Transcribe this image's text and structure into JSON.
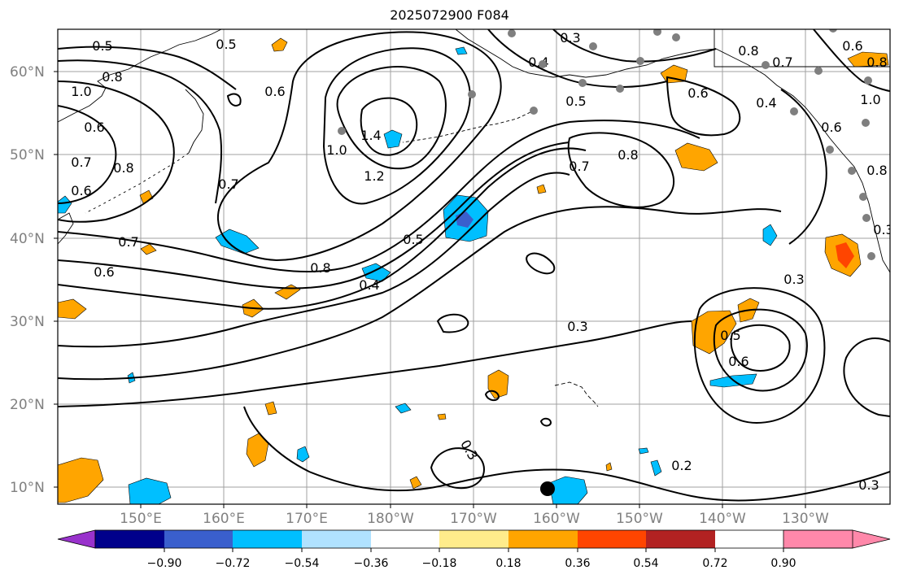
{
  "title": "2025072900 F084",
  "lat_labels": [
    "60°N",
    "50°N",
    "40°N",
    "30°N",
    "20°N",
    "10°N"
  ],
  "lon_labels": [
    "150°E",
    "160°E",
    "170°E",
    "180°W",
    "170°W",
    "160°W",
    "150°W",
    "140°W",
    "130°W"
  ],
  "colorbar": {
    "labels": [
      "−0.90",
      "−0.72",
      "−0.54",
      "−0.36",
      "−0.18",
      "0.18",
      "0.36",
      "0.54",
      "0.72",
      "0.90"
    ],
    "colors": [
      "#9932cc",
      "#00008b",
      "#3a5fcd",
      "#00bfff",
      "#b0e2ff",
      "#ffffff",
      "#ffec8b",
      "#ffa500",
      "#ff4500",
      "#b22222",
      "#ff88aa"
    ]
  },
  "contour_labels": [
    "0.5",
    "0.5",
    "0.8",
    "1.0",
    "0.6",
    "0.6",
    "0.7",
    "0.8",
    "0.7",
    "0.6",
    "0.7",
    "0.6",
    "1.4",
    "1.0",
    "1.2",
    "0.8",
    "0.5",
    "0.4",
    "0.3",
    "0.4",
    "0.5",
    "0.8",
    "0.7",
    "0.8",
    "0.6",
    "0.8",
    "0.7",
    "0.6",
    "0.4",
    "0.6",
    "0.8",
    "1.0",
    "0.3",
    "0.3",
    "0.5",
    "0.6",
    "0.3",
    "0.2",
    "0.3"
  ]
}
